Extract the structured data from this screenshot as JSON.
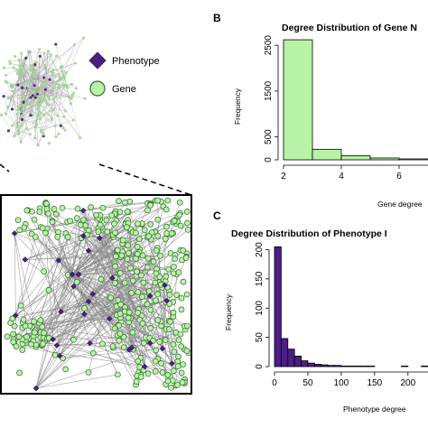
{
  "colors": {
    "phenotype": "#4b1f86",
    "gene": "#b8f2a6",
    "gene_edge": "#2f6b2a",
    "edge": "#8a8a8a",
    "inset_border": "#000000"
  },
  "legend": {
    "items": [
      {
        "label": "Phenotype",
        "shape": "diamond",
        "color": "#4b1f86"
      },
      {
        "label": "Gene",
        "shape": "circle",
        "color": "#b8f2a6"
      }
    ]
  },
  "panels": {
    "b": {
      "letter": "B"
    },
    "c": {
      "letter": "C"
    }
  },
  "chart_data": [
    {
      "type": "bar",
      "panel": "B",
      "title": "Degree Distribution of Gene N",
      "xlabel": "Gene degree",
      "ylabel": "Frequency",
      "bin_edges": [
        2,
        3,
        4,
        5,
        6,
        7
      ],
      "values": [
        2620,
        230,
        90,
        40,
        20
      ],
      "xticks": [
        2,
        4,
        6
      ],
      "yticks": [
        0,
        500,
        1500,
        2500
      ],
      "xlim": [
        2,
        7
      ],
      "ylim": [
        0,
        2700
      ],
      "bar_color": "#b8f2a6"
    },
    {
      "type": "bar",
      "panel": "C",
      "title": "Degree Distribution of Phenotype I",
      "xlabel": "Phenotype degree",
      "ylabel": "Frequency",
      "bin_edges": [
        0,
        10,
        20,
        30,
        40,
        50,
        60,
        70,
        80,
        90,
        100,
        110,
        120,
        130,
        140,
        150,
        160,
        170,
        180,
        190,
        200,
        210,
        220,
        230
      ],
      "values": [
        205,
        48,
        30,
        18,
        10,
        6,
        4,
        3,
        2,
        2,
        1,
        1,
        1,
        1,
        1,
        0,
        0,
        0,
        0,
        1,
        0,
        0,
        1
      ],
      "xticks": [
        0,
        50,
        100,
        150,
        200
      ],
      "yticks": [
        0,
        50,
        100,
        150,
        200
      ],
      "xlim": [
        0,
        230
      ],
      "ylim": [
        0,
        210
      ],
      "bar_color": "#4b1f86"
    }
  ]
}
